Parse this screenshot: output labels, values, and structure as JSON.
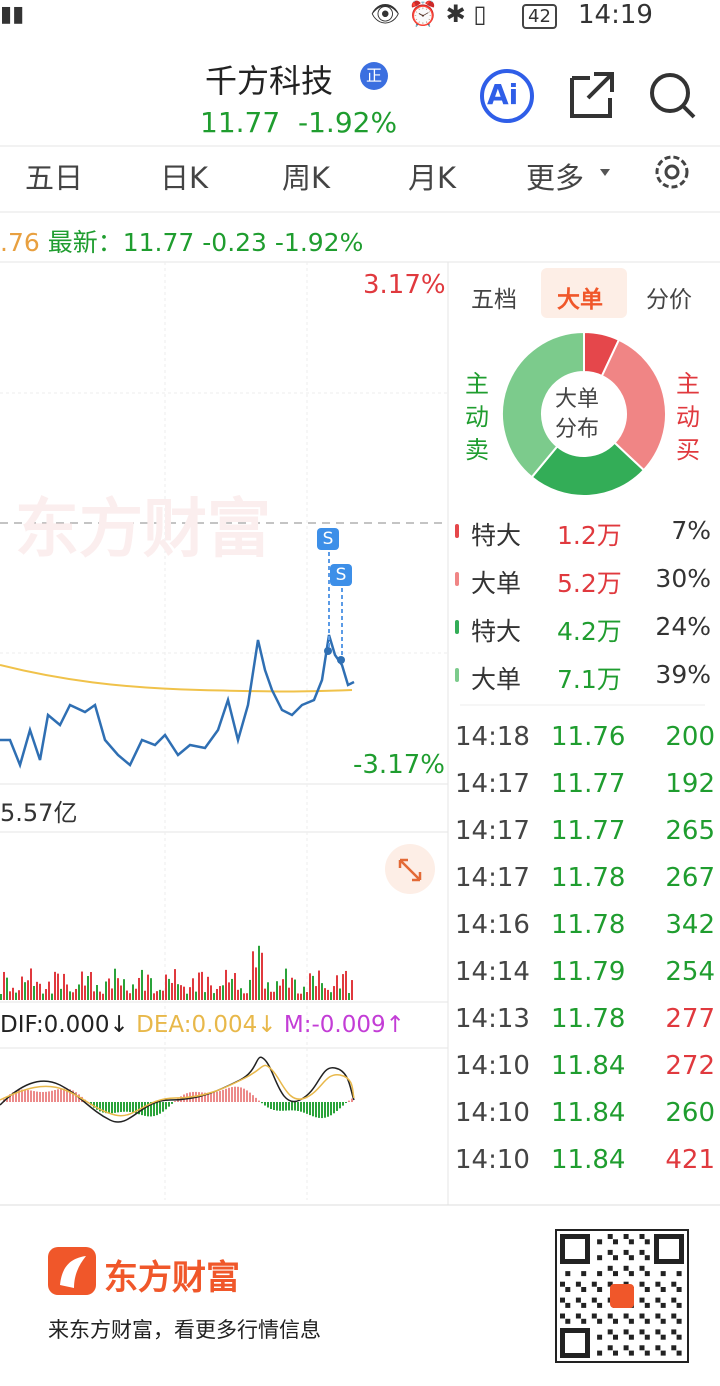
{
  "status_bar": {
    "battery": "42",
    "time": "14:19"
  },
  "header": {
    "title": "千方科技",
    "badge": "正",
    "price": "11.77",
    "change": "-1.92%",
    "ai": "Ai"
  },
  "tabs": [
    "五日",
    "日K",
    "周K",
    "月K",
    "更多"
  ],
  "quote_line": {
    "prev": ".76",
    "label": "最新：",
    "price": "11.77",
    "change": "-0.23",
    "pct": "-1.92%"
  },
  "chart": {
    "upper_pct": "3.17%",
    "lower_pct": "-3.17%",
    "watermark": "东方财富",
    "volume": "5.57亿",
    "dif": "DIF:0.000↓",
    "dea": "DEA:0.004↓",
    "m": "M:-0.009↑",
    "marker": "S"
  },
  "side_tabs": [
    "五档",
    "大单",
    "分价"
  ],
  "donut": {
    "center": [
      "大单",
      "分布"
    ],
    "sell_label": [
      "主",
      "动",
      "卖"
    ],
    "buy_label": [
      "主",
      "动",
      "买"
    ]
  },
  "big_orders": [
    {
      "type": "特大",
      "amount": "1.2万",
      "share": 7,
      "share_label": "7%",
      "color": "#e5474b"
    },
    {
      "type": "大单",
      "amount": "5.2万",
      "share": 30,
      "share_label": "30%",
      "color": "#f08585"
    },
    {
      "type": "特大",
      "amount": "4.2万",
      "share": 24,
      "share_label": "24%",
      "color": "#33ad57"
    },
    {
      "type": "大单",
      "amount": "7.1万",
      "share": 39,
      "share_label": "39%",
      "color": "#7ccb8c"
    }
  ],
  "trades": [
    {
      "time": "14:18",
      "price": "11.76",
      "volume": "200",
      "volume_color": "#1f9d2f"
    },
    {
      "time": "14:17",
      "price": "11.77",
      "volume": "192",
      "volume_color": "#1f9d2f"
    },
    {
      "time": "14:17",
      "price": "11.77",
      "volume": "265",
      "volume_color": "#1f9d2f"
    },
    {
      "time": "14:17",
      "price": "11.78",
      "volume": "267",
      "volume_color": "#1f9d2f"
    },
    {
      "time": "14:16",
      "price": "11.78",
      "volume": "342",
      "volume_color": "#1f9d2f"
    },
    {
      "time": "14:14",
      "price": "11.79",
      "volume": "254",
      "volume_color": "#1f9d2f"
    },
    {
      "time": "14:13",
      "price": "11.78",
      "volume": "277",
      "volume_color": "#e0393e"
    },
    {
      "time": "14:10",
      "price": "11.84",
      "volume": "272",
      "volume_color": "#e0393e"
    },
    {
      "time": "14:10",
      "price": "11.84",
      "volume": "260",
      "volume_color": "#1f9d2f"
    },
    {
      "time": "14:10",
      "price": "11.84",
      "volume": "421",
      "volume_color": "#e0393e"
    }
  ],
  "footer": {
    "brand": "东方财富",
    "slogan": "来东方财富，看更多行情信息"
  }
}
